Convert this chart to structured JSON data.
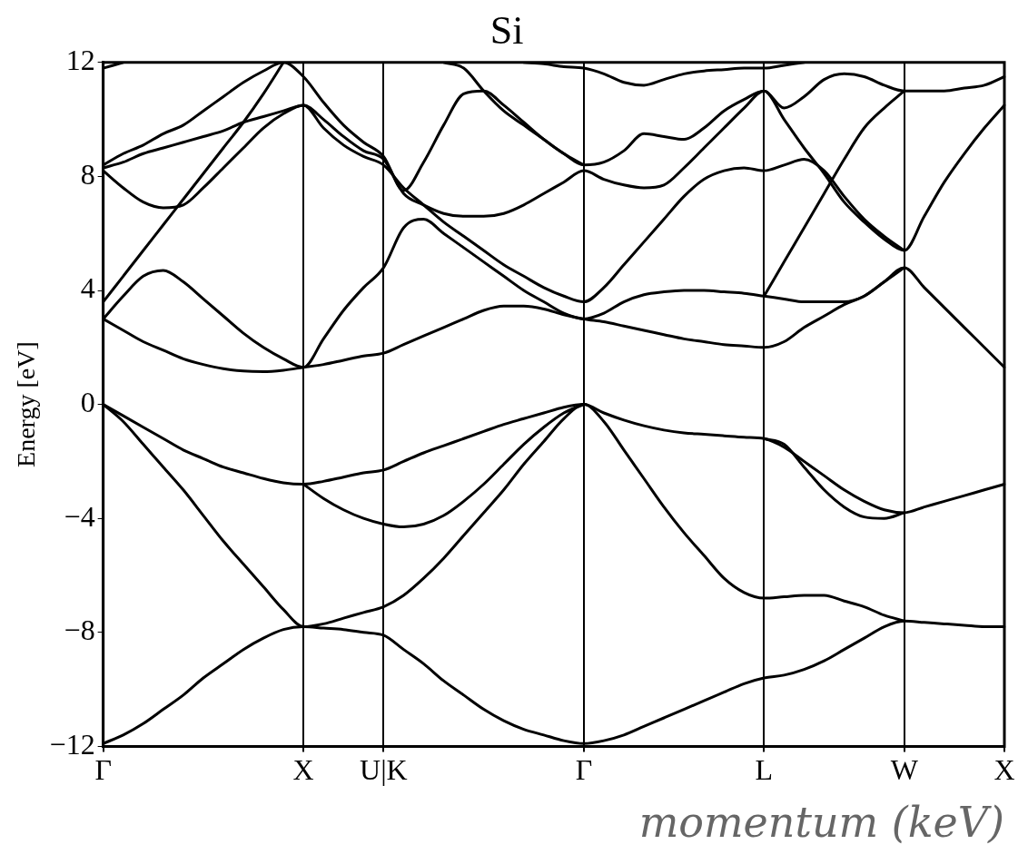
{
  "chart_data": {
    "type": "line",
    "title": "Si",
    "xlabel": "momentum (keV)",
    "ylabel": "Energy [eV]",
    "categories": [
      "Γ",
      null,
      null,
      null,
      null,
      null,
      null,
      null,
      null,
      null,
      "X",
      null,
      null,
      null,
      "U|K",
      null,
      null,
      null,
      null,
      null,
      null,
      null,
      null,
      null,
      "Γ",
      null,
      null,
      null,
      null,
      null,
      null,
      null,
      null,
      "L",
      null,
      null,
      null,
      null,
      null,
      null,
      "W",
      null,
      null,
      null,
      null,
      "X"
    ],
    "ylim": [
      -12,
      12
    ],
    "yticks": [
      12,
      8,
      4,
      0,
      {
        "value": -4,
        "label": "−4"
      },
      {
        "value": -8,
        "label": "−8"
      },
      {
        "value": -12,
        "label": "−12"
      }
    ],
    "grid": "x",
    "legend": false,
    "marker": "none",
    "line_style": "solid",
    "series": [
      {
        "color": "#000000",
        "values": [
          -11.9,
          -11.6,
          -11.2,
          -10.7,
          -10.2,
          -9.6,
          -9.1,
          -8.6,
          -8.2,
          -7.9,
          -7.8,
          -7.85,
          -7.9,
          -8.0,
          -8.1,
          -8.6,
          -9.1,
          -9.7,
          -10.2,
          -10.7,
          -11.1,
          -11.4,
          -11.6,
          -11.8,
          -11.9,
          -11.8,
          -11.6,
          -11.3,
          -11.0,
          -10.7,
          -10.4,
          -10.1,
          -9.8,
          -9.6,
          -9.5,
          -9.3,
          -9.0,
          -8.6,
          -8.2,
          -7.8,
          -7.6,
          -7.65,
          -7.7,
          -7.75,
          -7.8,
          -7.8
        ]
      },
      {
        "color": "#000000",
        "values": [
          0,
          -0.6,
          -1.4,
          -2.2,
          -3.0,
          -3.9,
          -4.8,
          -5.6,
          -6.4,
          -7.2,
          -7.8,
          -7.7,
          -7.5,
          -7.3,
          -7.1,
          -6.7,
          -6.1,
          -5.4,
          -4.6,
          -3.8,
          -3.0,
          -2.1,
          -1.3,
          -0.5,
          0,
          -0.6,
          -1.6,
          -2.6,
          -3.6,
          -4.5,
          -5.3,
          -6.1,
          -6.6,
          -6.8,
          -6.75,
          -6.7,
          -6.7,
          -6.9,
          -7.1,
          -7.4,
          -7.6,
          null,
          null,
          null,
          null,
          null
        ]
      },
      {
        "color": "#000000",
        "values": [
          0,
          -0.4,
          -0.8,
          -1.2,
          -1.6,
          -1.9,
          -2.2,
          -2.4,
          -2.6,
          -2.75,
          -2.8,
          -2.7,
          -2.55,
          -2.4,
          -2.3,
          -2.0,
          -1.7,
          -1.45,
          -1.2,
          -0.95,
          -0.7,
          -0.5,
          -0.3,
          -0.1,
          0,
          -0.3,
          -0.55,
          -0.75,
          -0.9,
          -1.0,
          -1.05,
          -1.1,
          -1.15,
          -1.2,
          -1.5,
          -2.0,
          -2.5,
          -3.0,
          -3.4,
          -3.7,
          -3.8,
          -3.6,
          -3.4,
          -3.2,
          -3.0,
          -2.8
        ]
      },
      {
        "color": "#000000",
        "values": [
          null,
          null,
          null,
          null,
          null,
          null,
          null,
          null,
          null,
          null,
          -2.8,
          -3.3,
          -3.7,
          -4.0,
          -4.2,
          -4.3,
          -4.2,
          -3.9,
          -3.4,
          -2.8,
          -2.1,
          -1.4,
          -0.8,
          -0.3,
          0,
          null,
          null,
          null,
          null,
          null,
          null,
          null,
          null,
          null,
          null,
          null,
          null,
          null,
          null,
          null,
          null,
          null,
          null,
          null,
          null,
          null
        ]
      },
      {
        "color": "#000000",
        "values": [
          null,
          null,
          null,
          null,
          null,
          null,
          null,
          null,
          null,
          null,
          null,
          null,
          null,
          null,
          null,
          null,
          null,
          null,
          null,
          null,
          null,
          null,
          null,
          null,
          null,
          null,
          null,
          null,
          null,
          null,
          null,
          null,
          null,
          -1.2,
          -1.4,
          -2.2,
          -3.0,
          -3.6,
          -3.95,
          -4.0,
          -3.8,
          null,
          null,
          null,
          null,
          null
        ]
      },
      {
        "color": "#000000",
        "values": [
          3.0,
          2.6,
          2.2,
          1.9,
          1.6,
          1.4,
          1.25,
          1.17,
          1.15,
          1.2,
          1.3,
          1.4,
          1.55,
          1.7,
          1.8,
          2.1,
          2.4,
          2.7,
          3.0,
          3.3,
          3.45,
          3.45,
          3.35,
          3.15,
          3.0,
          2.9,
          2.75,
          2.6,
          2.45,
          2.3,
          2.2,
          2.1,
          2.05,
          2.0,
          2.2,
          2.7,
          3.1,
          3.5,
          3.8,
          4.3,
          4.8,
          4.1,
          3.4,
          2.7,
          2.0,
          1.3
        ]
      },
      {
        "color": "#000000",
        "values": [
          3.0,
          3.8,
          4.5,
          4.7,
          4.3,
          3.7,
          3.1,
          2.5,
          2.0,
          1.6,
          1.3,
          2.3,
          3.3,
          4.1,
          4.8,
          6.2,
          6.5,
          6.0,
          5.5,
          5.0,
          4.5,
          4.0,
          3.6,
          3.2,
          3.0,
          3.2,
          3.6,
          3.85,
          3.95,
          4.0,
          4.0,
          3.95,
          3.9,
          3.8,
          3.7,
          3.6,
          3.6,
          3.6,
          3.8,
          4.3,
          4.8,
          null,
          null,
          null,
          null,
          null
        ]
      },
      {
        "color": "#000000",
        "values": [
          3.6,
          4.5,
          5.4,
          6.3,
          7.2,
          8.1,
          9.0,
          9.9,
          10.9,
          12,
          null,
          null,
          null,
          null,
          null,
          null,
          null,
          null,
          null,
          null,
          null,
          null,
          null,
          null,
          null,
          null,
          null,
          null,
          null,
          null,
          null,
          null,
          null,
          null,
          null,
          null,
          null,
          null,
          null,
          null,
          null,
          null,
          null,
          null,
          null,
          null
        ]
      },
      {
        "color": "#000000",
        "values": [
          8.2,
          7.6,
          7.1,
          6.9,
          7.0,
          7.6,
          8.3,
          9.0,
          9.7,
          10.2,
          10.5,
          10.0,
          9.4,
          8.9,
          8.6,
          7.4,
          7.0,
          6.7,
          6.6,
          6.6,
          6.7,
          7.0,
          7.4,
          7.8,
          8.2,
          7.9,
          7.7,
          7.6,
          7.7,
          8.3,
          9.0,
          9.7,
          10.4,
          11.0,
          10.0,
          9.0,
          8.1,
          7.1,
          6.4,
          5.8,
          5.4,
          6.6,
          7.8,
          8.8,
          9.7,
          10.5
        ]
      },
      {
        "color": "#000000",
        "values": [
          8.3,
          8.5,
          8.8,
          9.0,
          9.2,
          9.4,
          9.6,
          9.9,
          10.1,
          10.3,
          10.5,
          9.7,
          9.1,
          8.7,
          8.4,
          7.6,
          7.0,
          6.4,
          5.9,
          5.4,
          4.9,
          4.5,
          4.1,
          3.8,
          3.6,
          4.1,
          4.9,
          5.7,
          6.5,
          7.3,
          7.9,
          8.2,
          8.3,
          8.2,
          8.4,
          8.6,
          8.2,
          7.3,
          6.5,
          5.9,
          5.4,
          null,
          null,
          null,
          null,
          null
        ]
      },
      {
        "color": "#000000",
        "values": [
          8.4,
          8.8,
          9.1,
          9.5,
          9.8,
          10.3,
          10.8,
          11.3,
          11.7,
          12,
          11.5,
          10.6,
          9.8,
          9.2,
          8.7,
          7.5,
          8.5,
          9.8,
          10.9,
          11.0,
          10.5,
          9.9,
          9.3,
          8.8,
          8.4,
          8.5,
          8.9,
          9.5,
          9.4,
          9.3,
          9.7,
          10.3,
          10.7,
          11.0,
          10.4,
          10.8,
          11.4,
          11.6,
          11.5,
          11.2,
          11.0,
          11.0,
          11.0,
          11.1,
          11.2,
          11.5
        ]
      },
      {
        "color": "#000000",
        "values": [
          11.8,
          12,
          null,
          null,
          null,
          null,
          null,
          null,
          null,
          null,
          null,
          null,
          null,
          null,
          null,
          null,
          null,
          null,
          null,
          null,
          null,
          null,
          null,
          null,
          null,
          null,
          null,
          null,
          null,
          null,
          null,
          null,
          null,
          null,
          null,
          null,
          null,
          null,
          null,
          null,
          null,
          null,
          null,
          null,
          null,
          null
        ]
      },
      {
        "color": "#000000",
        "values": [
          null,
          null,
          null,
          null,
          null,
          null,
          null,
          null,
          null,
          null,
          null,
          null,
          null,
          null,
          null,
          null,
          null,
          null,
          null,
          null,
          null,
          12,
          11.95,
          11.85,
          11.8,
          11.6,
          11.3,
          11.2,
          11.4,
          11.6,
          11.7,
          11.75,
          11.8,
          11.8,
          11.9,
          12,
          null,
          null,
          null,
          null,
          null,
          null,
          null,
          null,
          null,
          null
        ]
      },
      {
        "color": "#000000",
        "values": [
          null,
          null,
          null,
          null,
          null,
          null,
          null,
          null,
          null,
          null,
          null,
          null,
          null,
          null,
          null,
          null,
          null,
          null,
          null,
          null,
          null,
          null,
          null,
          null,
          null,
          null,
          null,
          null,
          null,
          null,
          null,
          null,
          null,
          3.8,
          5.0,
          6.2,
          7.4,
          8.6,
          9.7,
          10.4,
          11.0,
          null,
          null,
          null,
          null,
          null
        ]
      },
      {
        "color": "#000000",
        "values": [
          null,
          null,
          null,
          null,
          null,
          null,
          null,
          null,
          null,
          null,
          null,
          null,
          null,
          null,
          null,
          null,
          null,
          12,
          11.8,
          11.0,
          10.3,
          9.8,
          9.3,
          8.8,
          8.4,
          null,
          null,
          null,
          null,
          null,
          null,
          null,
          null,
          null,
          null,
          null,
          null,
          null,
          null,
          null,
          null,
          null,
          null,
          null,
          null,
          null
        ]
      }
    ]
  }
}
